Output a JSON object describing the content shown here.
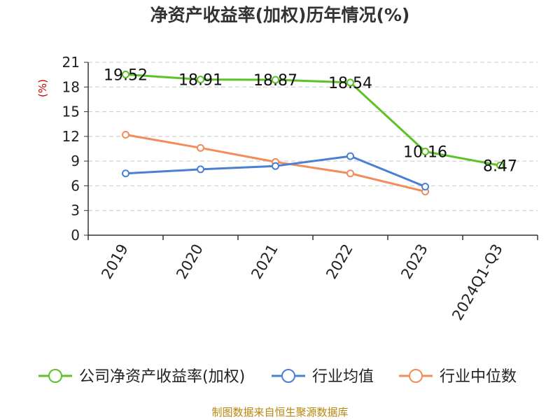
{
  "chart_data": {
    "type": "line",
    "title": "净资产收益率(加权)历年情况(%)",
    "ylabel": "(%)",
    "xlabel": "",
    "categories": [
      "2019",
      "2020",
      "2021",
      "2022",
      "2023",
      "2024Q1-Q3"
    ],
    "ylim": [
      0,
      21
    ],
    "yticks": [
      0,
      3,
      6,
      9,
      12,
      15,
      18,
      21
    ],
    "grid": true,
    "legend_position": "bottom",
    "series": [
      {
        "name": "公司净资产收益率(加权)",
        "color": "#5dc128",
        "values": [
          19.52,
          18.91,
          18.87,
          18.54,
          10.16,
          8.47
        ],
        "show_labels": true
      },
      {
        "name": "行业均值",
        "color": "#4a7fd4",
        "values": [
          7.5,
          8.0,
          8.4,
          9.6,
          5.9,
          null
        ],
        "show_labels": false
      },
      {
        "name": "行业中位数",
        "color": "#f28c5a",
        "values": [
          12.2,
          10.6,
          8.9,
          7.5,
          5.3,
          null
        ],
        "show_labels": false
      }
    ],
    "value_labels": [
      "19.52",
      "18.91",
      "18.87",
      "18.54",
      "10.16",
      "8.47"
    ],
    "source": "制图数据来自恒生聚源数据库"
  }
}
